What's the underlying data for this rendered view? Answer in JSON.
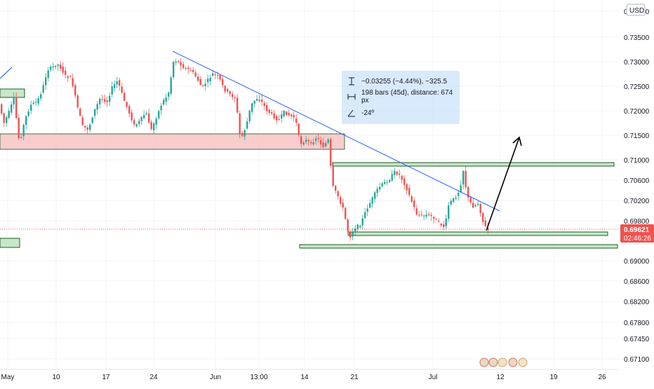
{
  "currency_button": "USD",
  "chart_data": {
    "type": "candlestick",
    "y_ticks": [
      "0.74000",
      "0.73500",
      "0.73000",
      "0.72500",
      "0.72000",
      "0.71500",
      "0.71000",
      "0.70600",
      "0.70200",
      "0.69800",
      "0.69000",
      "0.68600",
      "0.68200",
      "0.67800",
      "0.67450",
      "0.67100"
    ],
    "x_ticks": [
      "May",
      "10",
      "17",
      "24",
      "Jun",
      "13:00",
      "14",
      "21",
      "Jul",
      "12",
      "19",
      "26"
    ],
    "last_price": "0.69621",
    "countdown": "02:46:26",
    "measure": {
      "price_change": "−0.03255 (−4.44%), −325.5",
      "bars_distance": "198 bars (45d), distance: 674 px",
      "angle": "-24º"
    },
    "colors": {
      "up": "#26a69a",
      "down": "#ef5350",
      "trendline": "#2962ff",
      "zone_fill": "#c8e6c9",
      "zone_border": "#1b5e20",
      "red_zone": "#f8c5c5",
      "last_price": "#ef5350"
    }
  }
}
